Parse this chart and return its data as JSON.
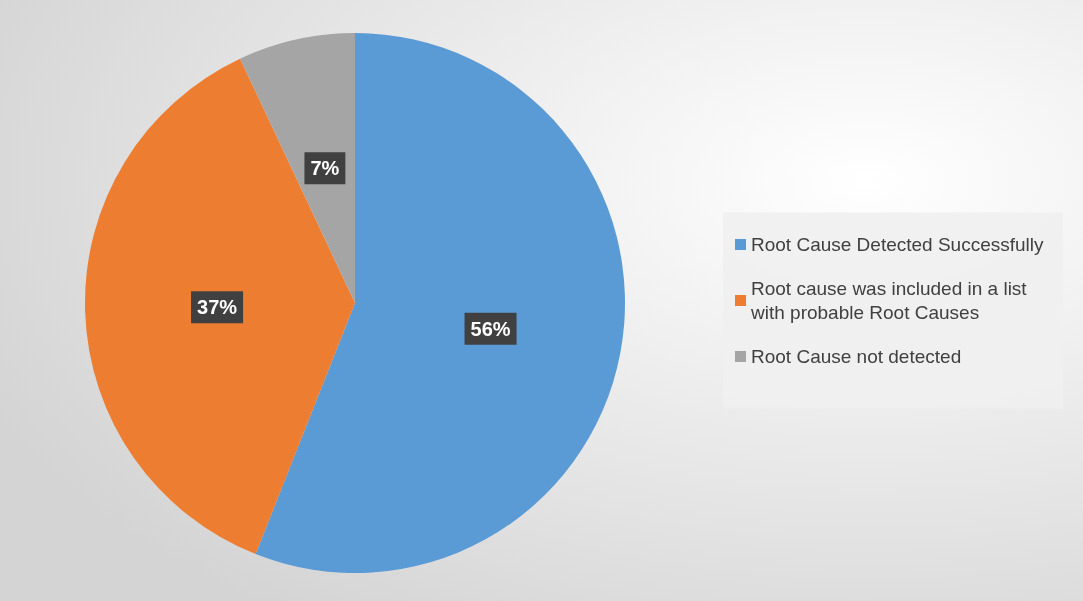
{
  "chart_data": {
    "type": "pie",
    "categories": [
      "Root Cause Detected Successfully",
      "Root cause was included in a list with probable Root Causes",
      "Root Cause not detected"
    ],
    "values": [
      56,
      37,
      7
    ],
    "colors": [
      "#5b9bd5",
      "#ed7d31",
      "#a5a5a5"
    ],
    "value_labels": [
      "56%",
      "37%",
      "7%"
    ],
    "legend": "right"
  }
}
